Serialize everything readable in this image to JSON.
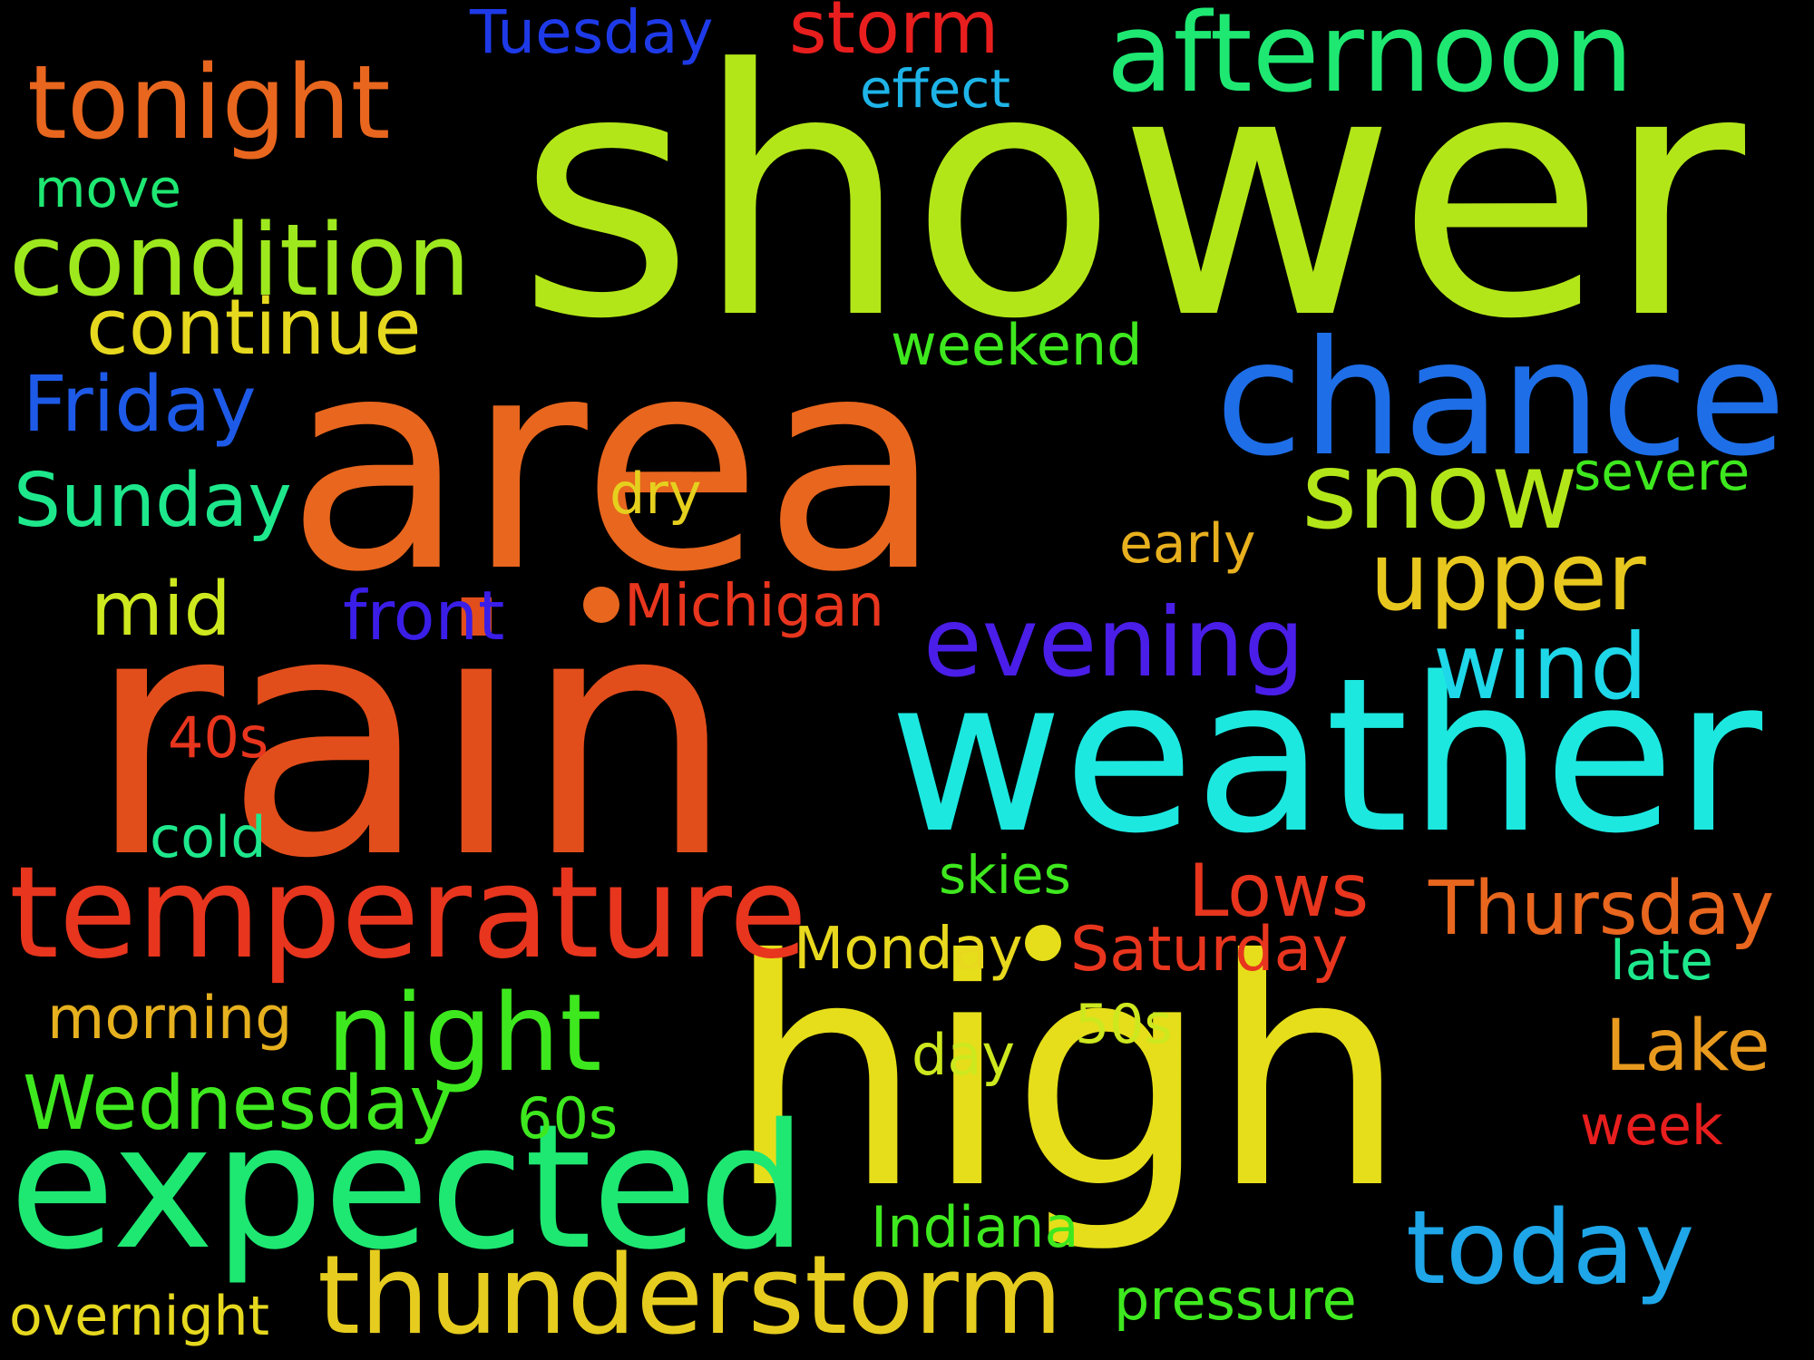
{
  "background_color": "#000000",
  "words": [
    {
      "text": "shower",
      "color": "#B3E619"
    },
    {
      "text": "rain",
      "color": "#E24E1B"
    },
    {
      "text": "area",
      "color": "#E8661E"
    },
    {
      "text": "high",
      "color": "#E6DE1A"
    },
    {
      "text": "weather",
      "color": "#1CE8E0"
    },
    {
      "text": "chance",
      "color": "#1E6EE8"
    },
    {
      "text": "expected",
      "color": "#1EE872"
    },
    {
      "text": "thunderstorm",
      "color": "#E6CC1E"
    },
    {
      "text": "temperature",
      "color": "#E8351E"
    },
    {
      "text": "afternoon",
      "color": "#1EE872"
    },
    {
      "text": "tonight",
      "color": "#E8661E"
    },
    {
      "text": "condition",
      "color": "#9EE81E"
    },
    {
      "text": "night",
      "color": "#3EE81E"
    },
    {
      "text": "snow",
      "color": "#B3E619"
    },
    {
      "text": "evening",
      "color": "#4A1EE8"
    },
    {
      "text": "today",
      "color": "#1EA6E8"
    },
    {
      "text": "upper",
      "color": "#E8C81E"
    },
    {
      "text": "wind",
      "color": "#1ED7E8"
    },
    {
      "text": "continue",
      "color": "#E6D81E"
    },
    {
      "text": "Friday",
      "color": "#1E5AE8"
    },
    {
      "text": "Sunday",
      "color": "#1EE88C"
    },
    {
      "text": "Wednesday",
      "color": "#3EE81E"
    },
    {
      "text": "Thursday",
      "color": "#E8661E"
    },
    {
      "text": "Lows",
      "color": "#E8351E"
    },
    {
      "text": "storm",
      "color": "#E81E1E"
    },
    {
      "text": "mid",
      "color": "#CDE81E"
    },
    {
      "text": "front",
      "color": "#3A1EE8"
    },
    {
      "text": "Michigan",
      "color": "#E8351E"
    },
    {
      "text": "Saturday",
      "color": "#E8351E"
    },
    {
      "text": "Monday",
      "color": "#E8D81E"
    },
    {
      "text": "morning",
      "color": "#E6B01E"
    },
    {
      "text": "Lake",
      "color": "#E89A1E"
    },
    {
      "text": "Tuesday",
      "color": "#1E3AE8"
    },
    {
      "text": "Indiana",
      "color": "#3EE81E"
    },
    {
      "text": "pressure",
      "color": "#3EE81E"
    },
    {
      "text": "overnight",
      "color": "#E6D81E"
    },
    {
      "text": "effect",
      "color": "#1EB4E8"
    },
    {
      "text": "weekend",
      "color": "#3EE81E"
    },
    {
      "text": "severe",
      "color": "#3EE81E"
    },
    {
      "text": "early",
      "color": "#E8B01E"
    },
    {
      "text": "dry",
      "color": "#E6D01E"
    },
    {
      "text": "move",
      "color": "#1EE872"
    },
    {
      "text": "40s",
      "color": "#E8351E"
    },
    {
      "text": "cold",
      "color": "#1EE88C"
    },
    {
      "text": "skies",
      "color": "#3EE81E"
    },
    {
      "text": "late",
      "color": "#1EE88C"
    },
    {
      "text": "50s",
      "color": "#CDE81E"
    },
    {
      "text": "day",
      "color": "#CDE81E"
    },
    {
      "text": "60s",
      "color": "#3EE81E"
    },
    {
      "text": "week",
      "color": "#E81E1E"
    }
  ]
}
